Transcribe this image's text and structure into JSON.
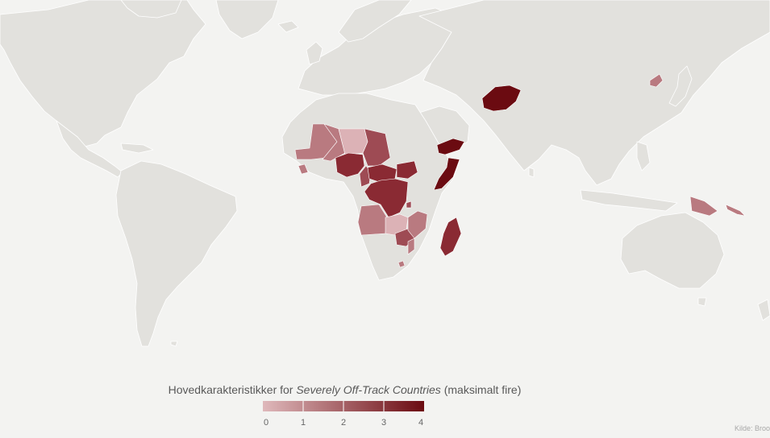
{
  "legend": {
    "title_prefix": "Hovedkarakteristikker for ",
    "title_italic": "Severely Off-Track Countries",
    "title_suffix": " (maksimalt fire)",
    "scale": {
      "min": 0,
      "max": 4,
      "color_min": "#dfb8bb",
      "color_max": "#6b0b11"
    },
    "ticks": [
      "0",
      "1",
      "2",
      "3",
      "4"
    ]
  },
  "source": "Kilde: Broo",
  "colors": {
    "background": "#f3f3f1",
    "land": "#e2e1dd",
    "border": "#ffffff",
    "level_1": "#b97a80",
    "level_2": "#9e4b54",
    "level_3": "#8a2a33",
    "level_4": "#6b0b11",
    "level_0": "#dcb2b6"
  },
  "highlighted_countries": [
    {
      "name": "Afghanistan",
      "value": 4
    },
    {
      "name": "Somalia",
      "value": 4
    },
    {
      "name": "Yemen",
      "value": 4
    },
    {
      "name": "Madagascar",
      "value": 3
    },
    {
      "name": "Nigeria",
      "value": 3
    },
    {
      "name": "Democratic Republic of the Congo",
      "value": 3
    },
    {
      "name": "Central African Republic",
      "value": 3
    },
    {
      "name": "Chad",
      "value": 2
    },
    {
      "name": "South Sudan",
      "value": 3
    },
    {
      "name": "Zimbabwe",
      "value": 2
    },
    {
      "name": "Mozambique",
      "value": 1
    },
    {
      "name": "Angola",
      "value": 1
    },
    {
      "name": "Zambia",
      "value": 0
    },
    {
      "name": "Mauritania",
      "value": 1
    },
    {
      "name": "Mali",
      "value": 1
    },
    {
      "name": "Niger",
      "value": 0
    },
    {
      "name": "Papua New Guinea",
      "value": 1
    },
    {
      "name": "North Korea",
      "value": 1
    },
    {
      "name": "Sierra Leone",
      "value": 1
    },
    {
      "name": "Cameroon",
      "value": 2
    },
    {
      "name": "Burundi",
      "value": 2
    },
    {
      "name": "Lesotho",
      "value": 1
    }
  ]
}
